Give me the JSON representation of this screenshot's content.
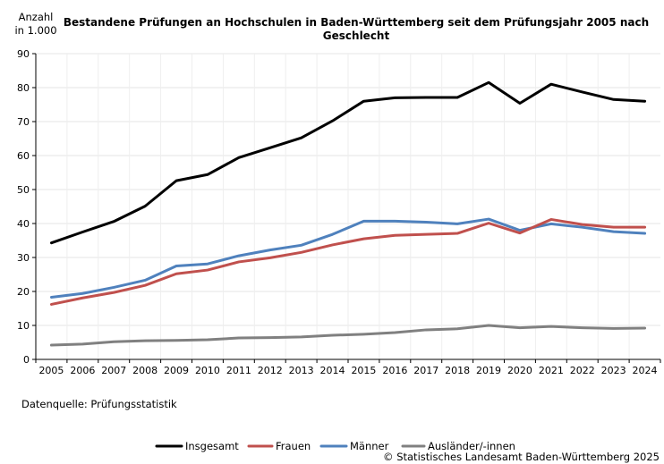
{
  "chart_data": {
    "type": "line",
    "title_lines": [
      "Bestandene Prüfungen an Hochschulen in Baden-Württemberg seit dem Prüfungsjahr 2005 nach",
      "Geschlecht"
    ],
    "ylabel_lines": [
      "Anzahl",
      "in 1.000"
    ],
    "xlabel": "",
    "ylim": [
      0,
      90
    ],
    "yticks": [
      0,
      10,
      20,
      30,
      40,
      50,
      60,
      70,
      80,
      90
    ],
    "grid": true,
    "legend_position": "bottom",
    "categories": [
      "2005",
      "2006",
      "2007",
      "2008",
      "2009",
      "2010",
      "2011",
      "2012",
      "2013",
      "2014",
      "2015",
      "2016",
      "2017",
      "2018",
      "2019",
      "2020",
      "2021",
      "2022",
      "2023",
      "2024"
    ],
    "series": [
      {
        "name": "Insgesamt",
        "color": "#000000",
        "values": [
          34.3,
          37.5,
          40.6,
          45.1,
          52.6,
          54.4,
          59.4,
          62.3,
          65.2,
          70.2,
          76.0,
          77.0,
          77.1,
          77.1,
          81.5,
          75.4,
          81.0,
          78.7,
          76.5,
          76.0
        ]
      },
      {
        "name": "Frauen",
        "color": "#c0504d",
        "values": [
          16.2,
          18.1,
          19.7,
          21.8,
          25.2,
          26.3,
          28.7,
          29.9,
          31.5,
          33.7,
          35.5,
          36.5,
          36.8,
          37.1,
          40.1,
          37.2,
          41.2,
          39.7,
          38.9,
          38.9
        ]
      },
      {
        "name": "Männer",
        "color": "#4f81bd",
        "values": [
          18.3,
          19.4,
          21.2,
          23.3,
          27.5,
          28.1,
          30.5,
          32.2,
          33.6,
          36.8,
          40.7,
          40.7,
          40.4,
          39.9,
          41.3,
          38.0,
          39.9,
          38.9,
          37.6,
          37.1
        ]
      },
      {
        "name": "Ausländer/-innen",
        "color": "#808080",
        "values": [
          4.2,
          4.5,
          5.2,
          5.5,
          5.6,
          5.8,
          6.3,
          6.4,
          6.6,
          7.1,
          7.4,
          7.9,
          8.7,
          9.0,
          10.0,
          9.3,
          9.7,
          9.3,
          9.1,
          9.2
        ]
      }
    ],
    "source_note": "Datenquelle: Prüfungsstatistik",
    "copyright": "© Statistisches Landesamt Baden-Württemberg 2025"
  }
}
